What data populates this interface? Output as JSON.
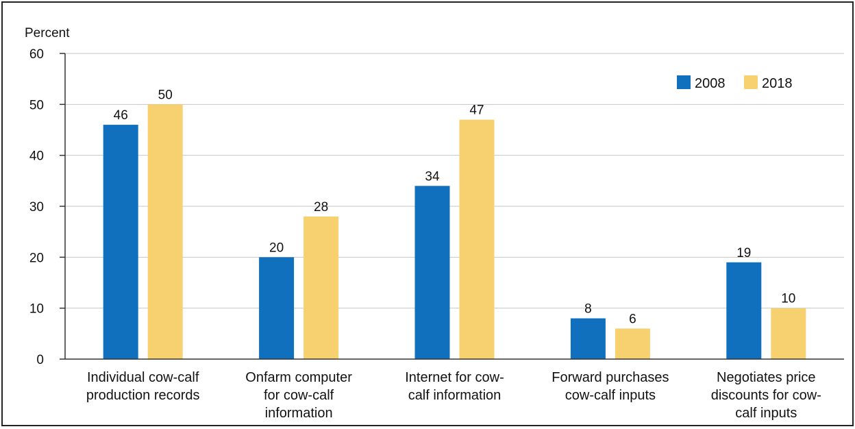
{
  "chart_data": {
    "type": "bar",
    "ylabel": "Percent",
    "ylim": [
      0,
      60
    ],
    "yticks": [
      0,
      10,
      20,
      30,
      40,
      50,
      60
    ],
    "grid": true,
    "legend_position": "top-right",
    "categories": [
      [
        "Individual cow-calf",
        "production records"
      ],
      [
        "Onfarm computer",
        "for cow-calf",
        "information"
      ],
      [
        "Internet for cow-",
        "calf information"
      ],
      [
        "Forward purchases",
        "cow-calf inputs"
      ],
      [
        "Negotiates price",
        "discounts for cow-",
        "calf inputs"
      ]
    ],
    "series": [
      {
        "name": "2008",
        "color": "#1070be",
        "values": [
          46,
          20,
          34,
          8,
          19
        ]
      },
      {
        "name": "2018",
        "color": "#f7d070",
        "values": [
          50,
          28,
          47,
          6,
          10
        ]
      }
    ]
  }
}
